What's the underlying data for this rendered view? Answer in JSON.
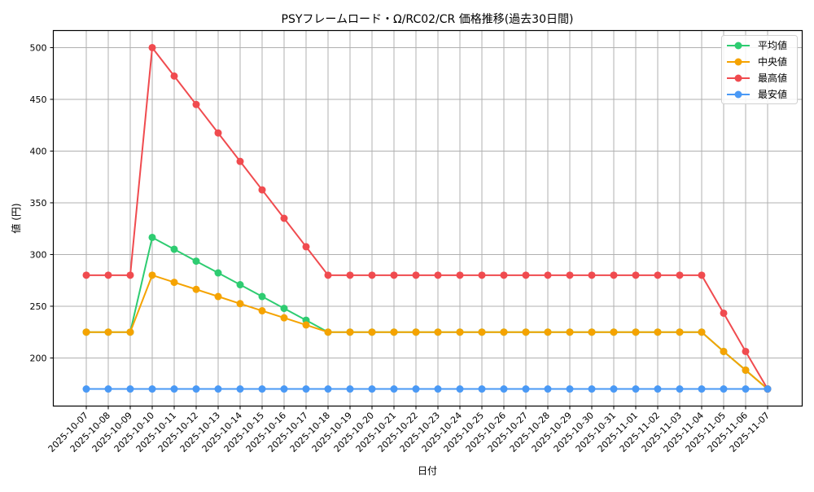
{
  "chart_data": {
    "type": "line",
    "title": "PSYフレームロード・Ω/RC02/CR 価格推移(過去30日間)",
    "xlabel": "日付",
    "ylabel": "値 (円)",
    "ylim": [
      153.5,
      516.5
    ],
    "yticks": [
      200,
      250,
      300,
      350,
      400,
      450,
      500
    ],
    "grid": true,
    "legend_position": "upper right",
    "categories": [
      "2025-10-07",
      "2025-10-08",
      "2025-10-09",
      "2025-10-10",
      "2025-10-11",
      "2025-10-12",
      "2025-10-13",
      "2025-10-14",
      "2025-10-15",
      "2025-10-16",
      "2025-10-17",
      "2025-10-18",
      "2025-10-19",
      "2025-10-20",
      "2025-10-21",
      "2025-10-22",
      "2025-10-23",
      "2025-10-24",
      "2025-10-25",
      "2025-10-26",
      "2025-10-27",
      "2025-10-28",
      "2025-10-29",
      "2025-10-30",
      "2025-10-31",
      "2025-11-01",
      "2025-11-02",
      "2025-11-03",
      "2025-11-04",
      "2025-11-05",
      "2025-11-06",
      "2025-11-07"
    ],
    "series": [
      {
        "name": "平均値",
        "color": "#2ecc71",
        "values": [
          225,
          225,
          225,
          316.5,
          305.1,
          293.6,
          282.2,
          270.8,
          259.4,
          247.9,
          236.5,
          225,
          225,
          225,
          225,
          225,
          225,
          225,
          225,
          225,
          225,
          225,
          225,
          225,
          225,
          225,
          225,
          225,
          225,
          206.3,
          188.2,
          170
        ]
      },
      {
        "name": "中央値",
        "color": "#f5a300",
        "values": [
          225,
          225,
          225,
          280,
          273.1,
          266.3,
          259.4,
          252.5,
          245.6,
          238.8,
          231.9,
          225,
          225,
          225,
          225,
          225,
          225,
          225,
          225,
          225,
          225,
          225,
          225,
          225,
          225,
          225,
          225,
          225,
          225,
          206.3,
          188.2,
          170
        ]
      },
      {
        "name": "最高値",
        "color": "#f04b4f",
        "values": [
          280,
          280,
          280,
          500,
          472.5,
          445,
          417.5,
          390,
          362.5,
          335,
          307.5,
          280,
          280,
          280,
          280,
          280,
          280,
          280,
          280,
          280,
          280,
          280,
          280,
          280,
          280,
          280,
          280,
          280,
          280,
          243.3,
          206.3,
          170
        ]
      },
      {
        "name": "最安値",
        "color": "#4a99f5",
        "values": [
          170,
          170,
          170,
          170,
          170,
          170,
          170,
          170,
          170,
          170,
          170,
          170,
          170,
          170,
          170,
          170,
          170,
          170,
          170,
          170,
          170,
          170,
          170,
          170,
          170,
          170,
          170,
          170,
          170,
          170,
          170,
          170
        ]
      }
    ]
  }
}
